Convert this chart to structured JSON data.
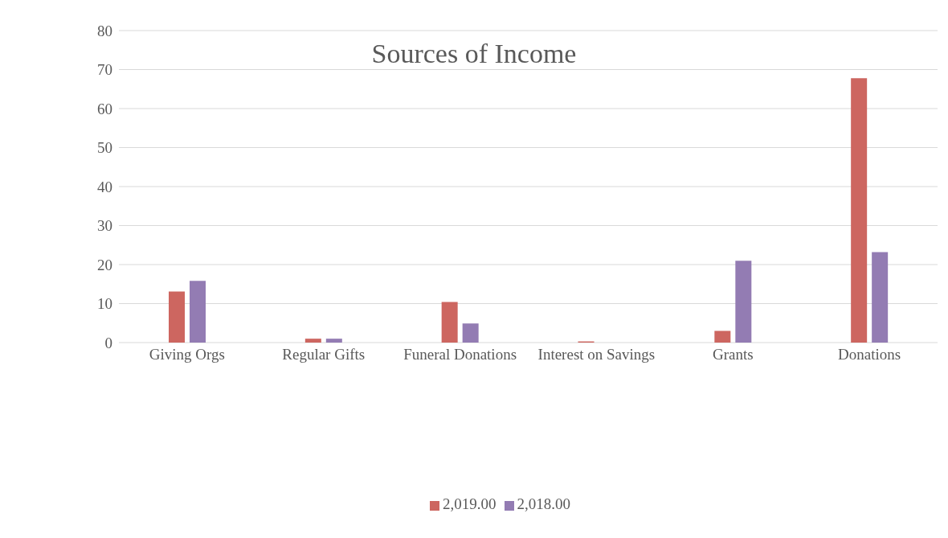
{
  "chart_data": {
    "type": "bar",
    "title": "Sources of Income",
    "categories": [
      "Giving Orgs",
      "Regular Gifts",
      "Funeral Donations",
      "Interest on Savings",
      "Grants",
      "Donations"
    ],
    "series": [
      {
        "name": "2,019.00",
        "color": "#cd6660",
        "values": [
          13.1,
          1,
          10.4,
          0.3,
          3,
          67.8
        ]
      },
      {
        "name": "2,018.00",
        "color": "#937cb3",
        "values": [
          15.8,
          1,
          4.9,
          0,
          21,
          23.2
        ]
      }
    ],
    "ylim": [
      0,
      80
    ],
    "yticks": [
      0,
      10,
      20,
      30,
      40,
      50,
      60,
      70,
      80
    ],
    "grid": "y",
    "legend": "bottom"
  }
}
